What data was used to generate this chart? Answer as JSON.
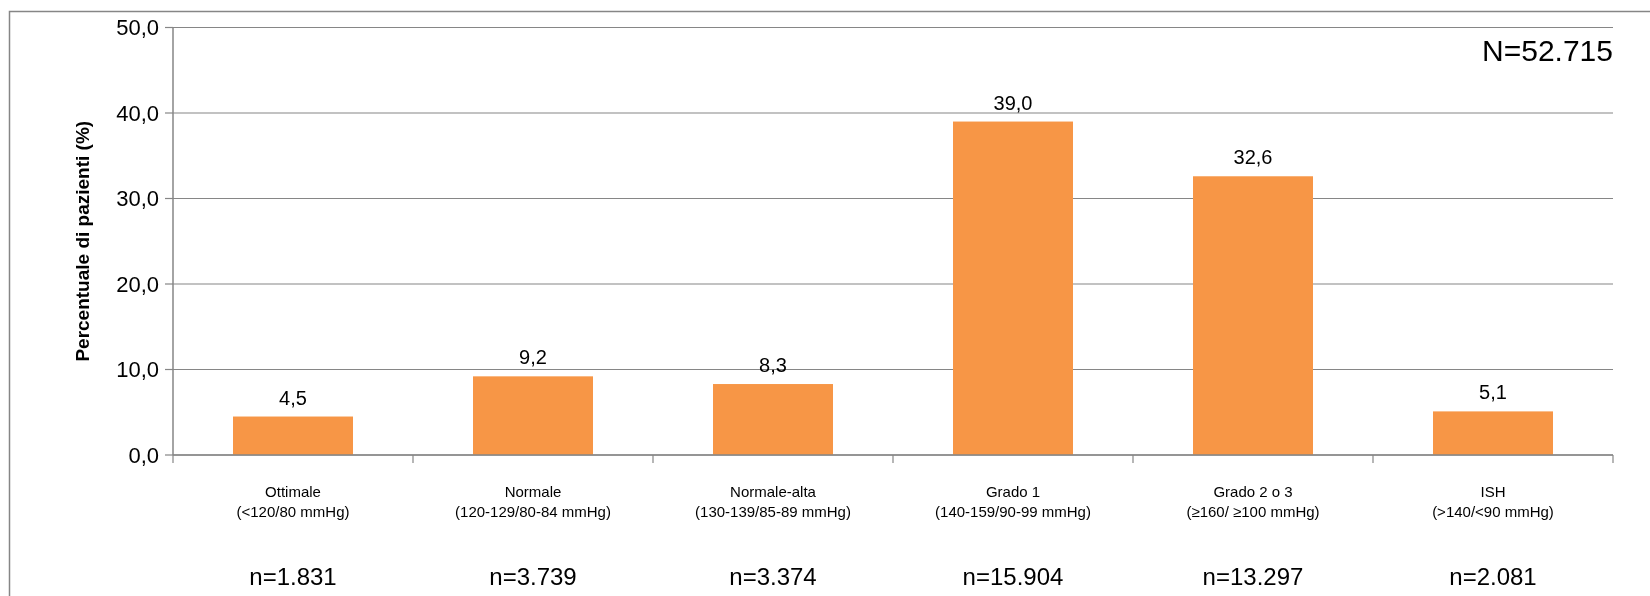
{
  "chart_data": {
    "type": "bar",
    "categories": [
      "Ottimale\n(<120/80 mmHg)",
      "Normale\n(120-129/80-84 mmHg)",
      "Normale-alta\n(130-139/85-89 mmHg)",
      "Grado 1\n(140-159/90-99 mmHg)",
      "Grado 2 o 3\n(≥160/ ≥100 mmHg)",
      "ISH\n(>140/<90 mmHg)"
    ],
    "values": [
      4.5,
      9.2,
      8.3,
      39.0,
      32.6,
      5.1
    ],
    "color": "#f79646",
    "value_labels": [
      "4,5",
      "9,2",
      "8,3",
      "39,0",
      "32,6",
      "5,1"
    ],
    "ylabel": "Percentuale di pazienti (%)",
    "ylim": [
      0,
      50
    ],
    "yticks": [
      {
        "value": 0,
        "label": "0,0"
      },
      {
        "value": 10,
        "label": "10,0"
      },
      {
        "value": 20,
        "label": "20,0"
      },
      {
        "value": 30,
        "label": "30,0"
      },
      {
        "value": 40,
        "label": "40,0"
      },
      {
        "value": 50,
        "label": "50,0"
      }
    ],
    "grid": "y",
    "annotations": [
      "N=52.715",
      "n=1.831",
      "n=3.739",
      "n=3.374",
      "n=15.904",
      "n=13.297",
      "n=2.081"
    ]
  }
}
